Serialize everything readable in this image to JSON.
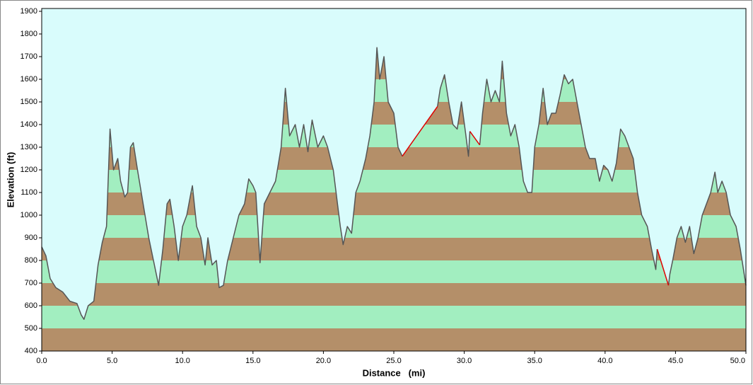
{
  "chart_data": {
    "type": "area-profile",
    "xlabel": "Distance   (mi)",
    "ylabel": "Elevation (ft)",
    "xlim": [
      0,
      50
    ],
    "ylim": [
      400,
      1900
    ],
    "xticks": [
      {
        "value": 0,
        "label": "0.0"
      },
      {
        "value": 5,
        "label": "5.0"
      },
      {
        "value": 10,
        "label": "10.0"
      },
      {
        "value": 15,
        "label": "15.0"
      },
      {
        "value": 20,
        "label": "20.0"
      },
      {
        "value": 25,
        "label": "25.0"
      },
      {
        "value": 30,
        "label": "30.0"
      },
      {
        "value": 35,
        "label": "35.0"
      },
      {
        "value": 40,
        "label": "40.0"
      },
      {
        "value": 45,
        "label": "45.0"
      },
      {
        "value": 50,
        "label": "50.0"
      }
    ],
    "yticks": [
      400,
      500,
      600,
      700,
      800,
      900,
      1000,
      1100,
      1200,
      1300,
      1400,
      1500,
      1600,
      1700,
      1800,
      1900
    ],
    "background": "#d9fcfc",
    "band_colors": [
      "#b48f69",
      "#a2eec0"
    ],
    "series": [
      {
        "color": "#555555",
        "x": [
          0,
          0.3,
          0.6,
          1,
          1.5,
          2,
          2.5,
          2.8,
          3,
          3.3,
          3.7,
          4,
          4.3,
          4.6,
          4.85,
          5.1,
          5.4,
          5.6,
          5.9,
          6.1,
          6.3,
          6.5,
          6.8,
          7.2,
          7.6,
          8,
          8.3,
          8.6,
          8.9,
          9.1,
          9.4,
          9.7,
          10,
          10.3,
          10.6,
          10.7,
          11,
          11.3,
          11.6,
          11.8,
          12.1,
          12.4,
          12.6,
          12.9,
          13.2,
          13.6,
          14,
          14.4,
          14.7,
          15,
          15.2,
          15.5,
          15.8,
          16.2,
          16.6,
          17,
          17.3,
          17.6,
          18,
          18.3,
          18.6,
          18.9,
          19.2,
          19.6,
          20,
          20.3,
          20.7,
          21,
          21.2,
          21.4,
          21.7,
          22,
          22.3,
          22.6,
          23,
          23.3,
          23.6,
          23.8,
          24,
          24.3,
          24.6,
          25,
          25.3,
          25.6,
          null,
          28.1,
          28.3,
          28.6,
          28.9,
          29.2,
          29.5,
          29.8,
          30.1,
          30.3,
          30.4,
          null,
          31.1,
          31.3,
          31.6,
          31.9,
          32.2,
          32.5,
          32.7,
          33,
          33.3,
          33.6,
          33.9,
          34.2,
          34.5,
          34.8,
          35,
          35.3,
          35.6,
          35.9,
          36.2,
          36.5,
          36.8,
          37.1,
          37.4,
          37.7,
          38,
          38.3,
          38.6,
          38.9,
          39.3,
          39.6,
          39.9,
          40.2,
          40.5,
          40.8,
          41.1,
          41.4,
          41.7,
          42,
          42.3,
          42.6,
          43,
          43.3,
          43.6,
          43.7,
          null,
          44.5,
          44.6,
          44.8,
          45.1,
          45.4,
          45.7,
          46,
          46.3,
          46.6,
          46.9,
          47.2,
          47.5,
          47.8,
          48,
          48.3,
          48.6,
          48.9,
          49.3,
          49.6,
          50
        ],
        "values": [
          860,
          820,
          720,
          680,
          660,
          620,
          610,
          560,
          540,
          600,
          620,
          780,
          880,
          950,
          1380,
          1200,
          1250,
          1150,
          1080,
          1100,
          1300,
          1320,
          1200,
          1050,
          900,
          780,
          690,
          850,
          1050,
          1070,
          950,
          800,
          950,
          1000,
          1100,
          1130,
          950,
          900,
          780,
          900,
          780,
          800,
          680,
          690,
          800,
          900,
          1000,
          1050,
          1160,
          1130,
          1100,
          790,
          1050,
          1100,
          1150,
          1300,
          1560,
          1350,
          1400,
          1300,
          1400,
          1280,
          1420,
          1300,
          1350,
          1300,
          1200,
          1050,
          950,
          870,
          950,
          920,
          1100,
          1150,
          1250,
          1350,
          1500,
          1740,
          1600,
          1700,
          1500,
          1450,
          1300,
          1260,
          null,
          1480,
          1560,
          1620,
          1500,
          1400,
          1380,
          1500,
          1360,
          1260,
          1370,
          null,
          1310,
          1450,
          1600,
          1500,
          1550,
          1500,
          1680,
          1450,
          1350,
          1400,
          1300,
          1150,
          1100,
          1100,
          1300,
          1400,
          1560,
          1400,
          1450,
          1450,
          1530,
          1620,
          1580,
          1600,
          1500,
          1400,
          1300,
          1250,
          1250,
          1150,
          1220,
          1200,
          1150,
          1230,
          1380,
          1350,
          1300,
          1250,
          1100,
          1000,
          950,
          850,
          760,
          850,
          null,
          690,
          740,
          800,
          900,
          950,
          880,
          950,
          830,
          900,
          1000,
          1050,
          1100,
          1190,
          1100,
          1150,
          1100,
          1000,
          950,
          850,
          690
        ]
      },
      {
        "color": "#e00000",
        "x": [
          25.6,
          28.1,
          null,
          30.4,
          31.1,
          null,
          43.7,
          44.5
        ],
        "values": [
          1260,
          1480,
          null,
          1370,
          1310,
          null,
          850,
          690
        ]
      }
    ]
  }
}
